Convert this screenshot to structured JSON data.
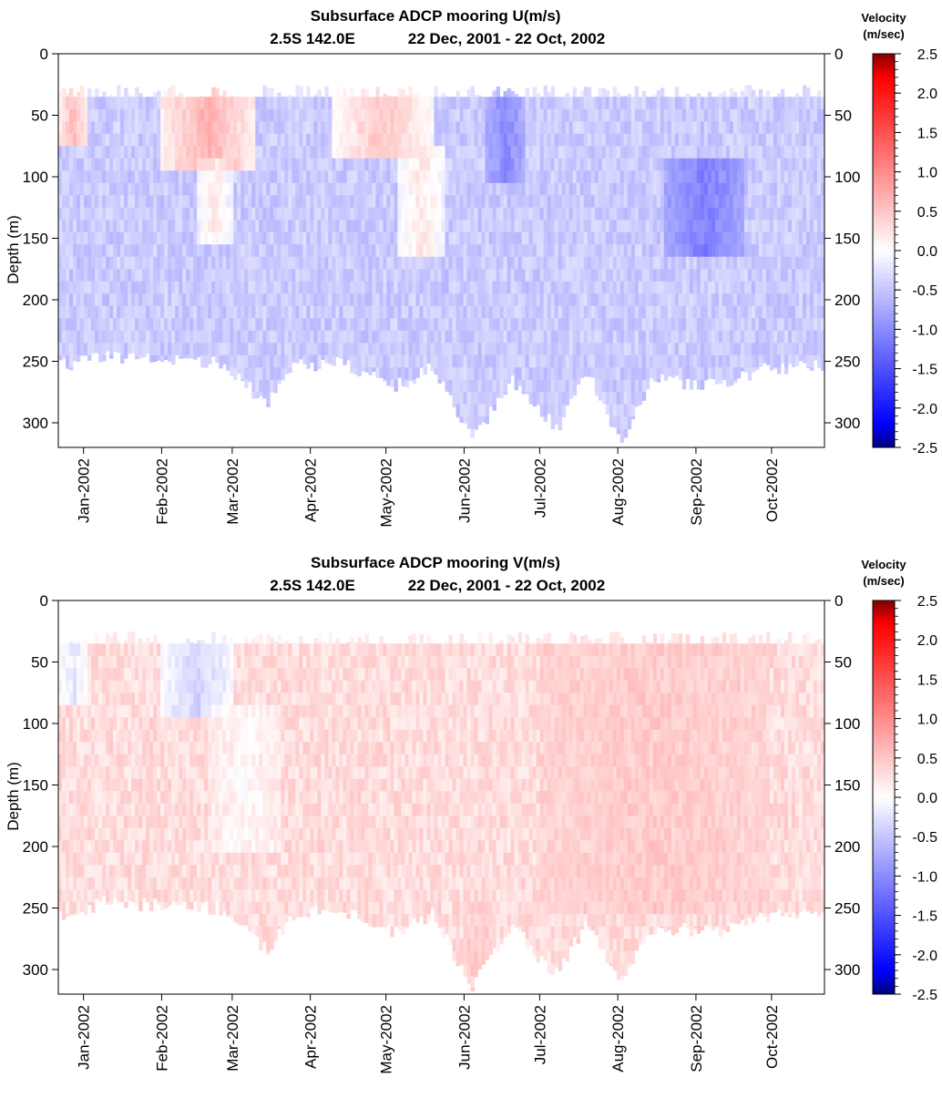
{
  "chart_data": [
    {
      "type": "heatmap",
      "title": "Subsurface ADCP mooring U(m/s)",
      "subtitle_location": "2.5S 142.0E",
      "subtitle_period": "22 Dec, 2001 - 22 Oct, 2002",
      "ylabel": "Depth (m)",
      "xlabel": "",
      "x_range": [
        "2001-12-22",
        "2002-10-22"
      ],
      "ylim": [
        320,
        0
      ],
      "y_ticks": [
        "0",
        "50",
        "100",
        "150",
        "200",
        "250",
        "300"
      ],
      "x_ticks": [
        "Jan-2002",
        "Feb-2002",
        "Mar-2002",
        "Apr-2002",
        "May-2002",
        "Jun-2002",
        "Jul-2002",
        "Aug-2002",
        "Sep-2002",
        "Oct-2002"
      ],
      "colorbar": {
        "title_line1": "Velocity",
        "title_line2": "(m/sec)",
        "range": [
          -2.5,
          2.5
        ],
        "ticks": [
          "2.5",
          "2.0",
          "1.5",
          "1.0",
          "0.5",
          "0.0",
          "-0.5",
          "-1.0",
          "-1.5",
          "-2.0",
          "-2.5"
        ]
      },
      "data_top_depth_m": 35,
      "data_bottom_depth_m": [
        {
          "date": "2001-12-22",
          "depth": 255
        },
        {
          "date": "2002-01-10",
          "depth": 245
        },
        {
          "date": "2002-02-25",
          "depth": 250
        },
        {
          "date": "2002-03-15",
          "depth": 285
        },
        {
          "date": "2002-03-25",
          "depth": 255
        },
        {
          "date": "2002-04-10",
          "depth": 250
        },
        {
          "date": "2002-05-05",
          "depth": 270
        },
        {
          "date": "2002-05-20",
          "depth": 255
        },
        {
          "date": "2002-06-04",
          "depth": 315
        },
        {
          "date": "2002-06-20",
          "depth": 265
        },
        {
          "date": "2002-07-08",
          "depth": 305
        },
        {
          "date": "2002-07-20",
          "depth": 260
        },
        {
          "date": "2002-08-02",
          "depth": 315
        },
        {
          "date": "2002-08-15",
          "depth": 265
        },
        {
          "date": "2002-09-10",
          "depth": 270
        },
        {
          "date": "2002-10-01",
          "depth": 255
        },
        {
          "date": "2002-10-22",
          "depth": 255
        }
      ],
      "mean_velocity": -0.45,
      "features": [
        {
          "date_start": "2001-12-22",
          "date_end": "2002-01-03",
          "depth_min": 35,
          "depth_max": 75,
          "value": 0.6
        },
        {
          "date_start": "2002-02-01",
          "date_end": "2002-03-10",
          "depth_min": 35,
          "depth_max": 90,
          "value": 0.7
        },
        {
          "date_start": "2002-02-15",
          "date_end": "2002-03-01",
          "depth_min": 90,
          "depth_max": 150,
          "value": 0.2
        },
        {
          "date_start": "2002-04-10",
          "date_end": "2002-05-20",
          "depth_min": 35,
          "depth_max": 80,
          "value": 0.5
        },
        {
          "date_start": "2002-05-05",
          "date_end": "2002-05-25",
          "depth_min": 80,
          "depth_max": 160,
          "value": 0.2
        },
        {
          "date_start": "2002-08-20",
          "date_end": "2002-09-20",
          "depth_min": 90,
          "depth_max": 160,
          "value": -1.1
        },
        {
          "date_start": "2002-06-10",
          "date_end": "2002-06-25",
          "depth_min": 35,
          "depth_max": 100,
          "value": -1.0
        }
      ]
    },
    {
      "type": "heatmap",
      "title": "Subsurface ADCP mooring V(m/s)",
      "subtitle_location": "2.5S 142.0E",
      "subtitle_period": "22 Dec, 2001 - 22 Oct, 2002",
      "ylabel": "Depth (m)",
      "xlabel": "",
      "x_range": [
        "2001-12-22",
        "2002-10-22"
      ],
      "ylim": [
        320,
        0
      ],
      "y_ticks": [
        "0",
        "50",
        "100",
        "150",
        "200",
        "250",
        "300"
      ],
      "x_ticks": [
        "Jan-2002",
        "Feb-2002",
        "Mar-2002",
        "Apr-2002",
        "May-2002",
        "Jun-2002",
        "Jul-2002",
        "Aug-2002",
        "Sep-2002",
        "Oct-2002"
      ],
      "colorbar": {
        "title_line1": "Velocity",
        "title_line2": "(m/sec)",
        "range": [
          -2.5,
          2.5
        ],
        "ticks": [
          "2.5",
          "2.0",
          "1.5",
          "1.0",
          "0.5",
          "0.0",
          "-0.5",
          "-1.0",
          "-1.5",
          "-2.0",
          "-2.5"
        ]
      },
      "data_top_depth_m": 35,
      "data_bottom_depth_m": [
        {
          "date": "2001-12-22",
          "depth": 255
        },
        {
          "date": "2002-01-10",
          "depth": 245
        },
        {
          "date": "2002-02-25",
          "depth": 250
        },
        {
          "date": "2002-03-15",
          "depth": 285
        },
        {
          "date": "2002-03-25",
          "depth": 255
        },
        {
          "date": "2002-04-10",
          "depth": 250
        },
        {
          "date": "2002-05-05",
          "depth": 270
        },
        {
          "date": "2002-05-20",
          "depth": 255
        },
        {
          "date": "2002-06-04",
          "depth": 315
        },
        {
          "date": "2002-06-20",
          "depth": 265
        },
        {
          "date": "2002-07-08",
          "depth": 305
        },
        {
          "date": "2002-07-20",
          "depth": 260
        },
        {
          "date": "2002-08-02",
          "depth": 315
        },
        {
          "date": "2002-08-15",
          "depth": 265
        },
        {
          "date": "2002-09-10",
          "depth": 270
        },
        {
          "date": "2002-10-01",
          "depth": 255
        },
        {
          "date": "2002-10-22",
          "depth": 255
        }
      ],
      "mean_velocity": 0.3,
      "features": [
        {
          "date_start": "2001-12-22",
          "date_end": "2002-01-03",
          "depth_min": 35,
          "depth_max": 80,
          "value": -0.2
        },
        {
          "date_start": "2002-02-01",
          "date_end": "2002-03-01",
          "depth_min": 35,
          "depth_max": 90,
          "value": -0.4
        },
        {
          "date_start": "2002-02-20",
          "date_end": "2002-03-20",
          "depth_min": 90,
          "depth_max": 200,
          "value": 0.05
        },
        {
          "date_start": "2002-06-01",
          "date_end": "2002-06-12",
          "depth_min": 250,
          "depth_max": 315,
          "value": 0.45
        },
        {
          "date_start": "2002-07-01",
          "date_end": "2002-09-30",
          "depth_min": 35,
          "depth_max": 250,
          "value": 0.45
        }
      ]
    }
  ]
}
